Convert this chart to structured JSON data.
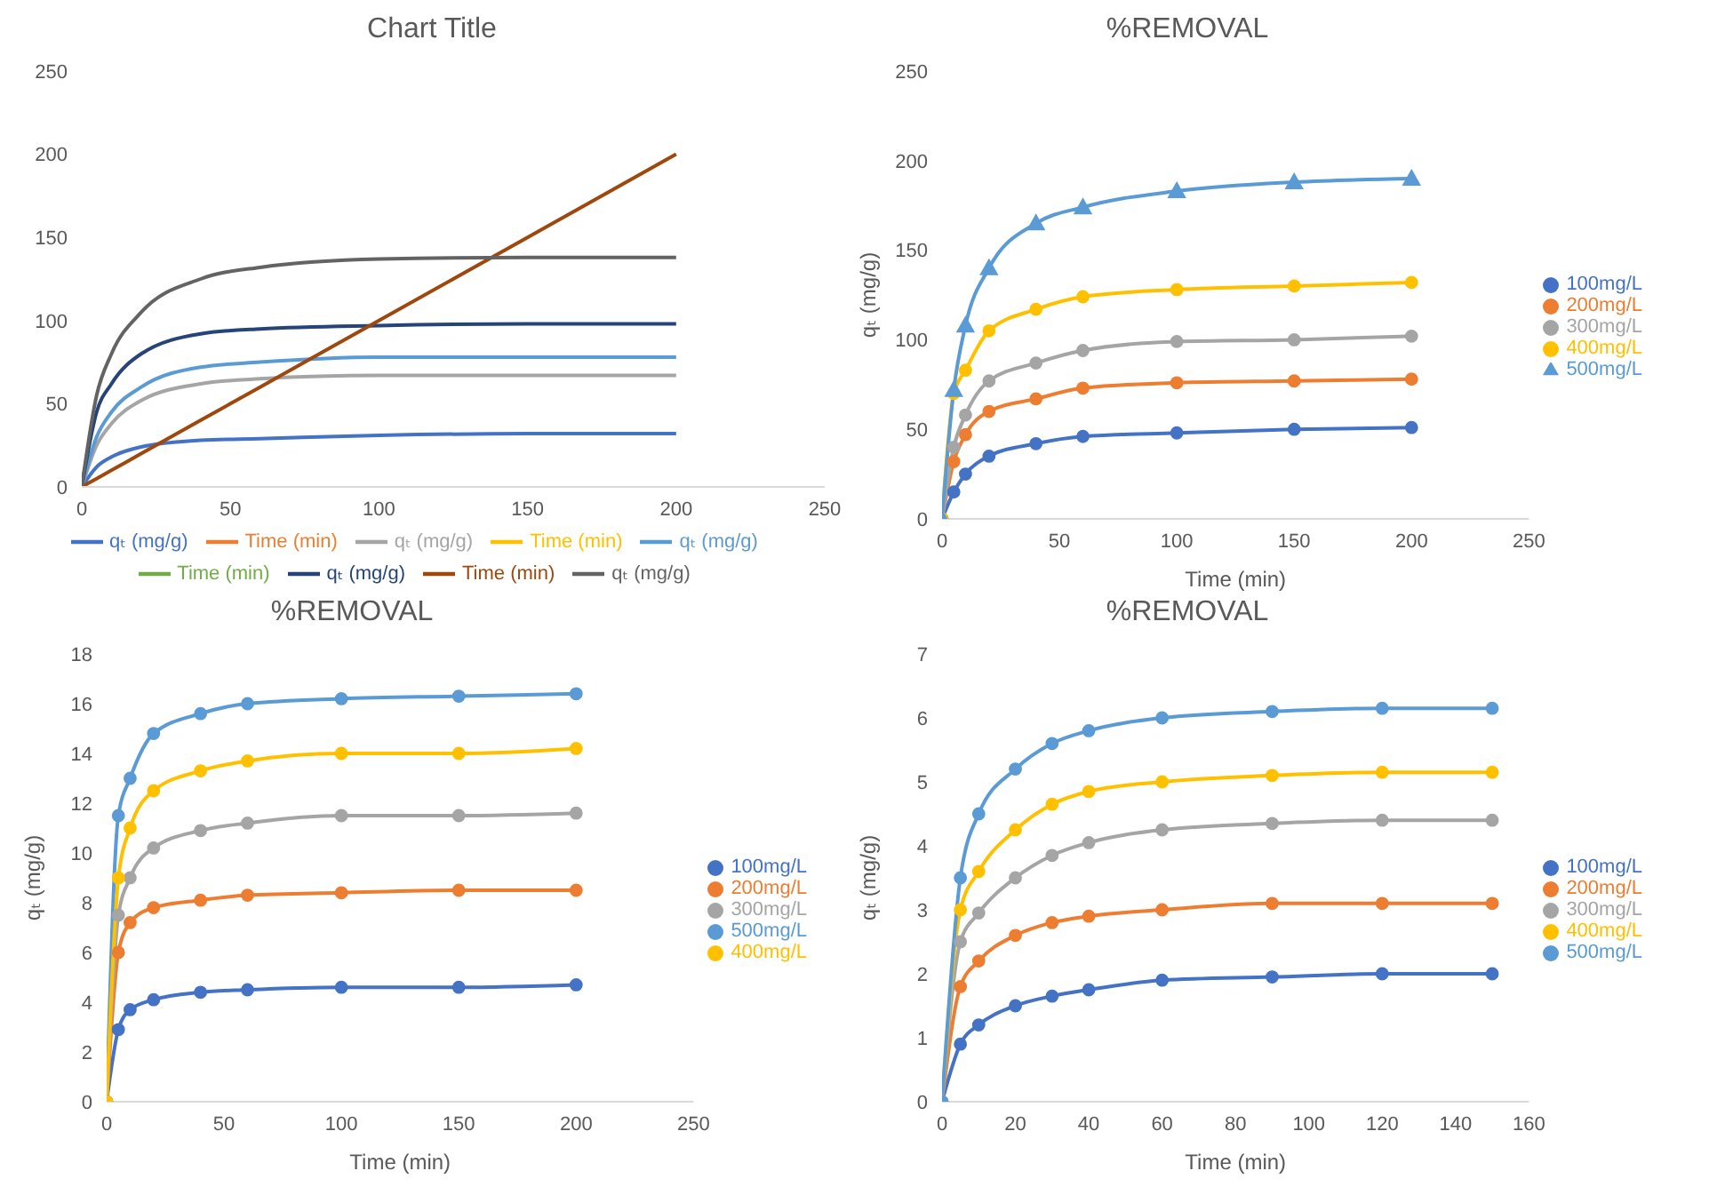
{
  "chart_data": [
    {
      "type": "line",
      "title": "Chart Title",
      "x": [
        0,
        5,
        10,
        20,
        40,
        60,
        100,
        150,
        200
      ],
      "xlim": [
        0,
        250
      ],
      "xticks": [
        0,
        50,
        100,
        150,
        200,
        250
      ],
      "ylim": [
        0,
        250
      ],
      "yticks": [
        0,
        50,
        100,
        150,
        200,
        250
      ],
      "legend": "bottom",
      "series": [
        {
          "name": "qₜ (mg/g)",
          "color": "#4472c4",
          "values": [
            0,
            12,
            18,
            24,
            28,
            29,
            31,
            32,
            32
          ]
        },
        {
          "name": "Time (min)",
          "color": "#ed7d31",
          "values": [
            null,
            null,
            null,
            null,
            null,
            null,
            null,
            null,
            null
          ]
        },
        {
          "name": "qₜ (mg/g)",
          "color": "#a5a5a5",
          "values": [
            0,
            25,
            38,
            52,
            62,
            65,
            67,
            67,
            67
          ]
        },
        {
          "name": "Time (min)",
          "color": "#ffc000",
          "values": [
            null,
            null,
            null,
            null,
            null,
            null,
            null,
            null,
            null
          ]
        },
        {
          "name": "qₜ (mg/g)",
          "color": "#5b9bd5",
          "values": [
            0,
            30,
            45,
            60,
            72,
            75,
            78,
            78,
            78
          ]
        },
        {
          "name": "Time (min)",
          "color": "#70ad47",
          "values": [
            null,
            null,
            null,
            null,
            null,
            null,
            null,
            null,
            null
          ]
        },
        {
          "name": "qₜ (mg/g)",
          "color": "#264478",
          "values": [
            0,
            45,
            62,
            80,
            92,
            95,
            97,
            98,
            98
          ]
        },
        {
          "name": "Time (min)",
          "color": "#9e480e",
          "values": [
            0,
            5,
            10,
            20,
            40,
            60,
            100,
            150,
            200
          ]
        },
        {
          "name": "qₜ (mg/g)",
          "color": "#636363",
          "values": [
            0,
            55,
            80,
            105,
            125,
            132,
            137,
            138,
            138
          ]
        }
      ]
    },
    {
      "type": "line",
      "title": "%REMOVAL",
      "xlabel": "Time (min)",
      "ylabel": "qₜ (mg/g)",
      "x": [
        0,
        5,
        10,
        20,
        40,
        60,
        100,
        150,
        200
      ],
      "xlim": [
        0,
        250
      ],
      "xticks": [
        0,
        50,
        100,
        150,
        200,
        250
      ],
      "ylim": [
        0,
        250
      ],
      "yticks": [
        0,
        50,
        100,
        150,
        200,
        250
      ],
      "legend": "right",
      "marker": "circle",
      "series": [
        {
          "name": "100mg/L",
          "color": "#4472c4",
          "values": [
            0,
            15,
            25,
            35,
            42,
            46,
            48,
            50,
            51
          ]
        },
        {
          "name": "200mg/L",
          "color": "#ed7d31",
          "values": [
            0,
            32,
            47,
            60,
            67,
            73,
            76,
            77,
            78
          ]
        },
        {
          "name": "300mg/L",
          "color": "#a5a5a5",
          "values": [
            0,
            40,
            58,
            77,
            87,
            94,
            99,
            100,
            102
          ]
        },
        {
          "name": "400mg/L",
          "color": "#ffc000",
          "values": [
            0,
            70,
            83,
            105,
            117,
            124,
            128,
            130,
            132
          ]
        },
        {
          "name": "500mg/L",
          "color": "#5b9bd5",
          "marker": "triangle",
          "values": [
            0,
            72,
            108,
            140,
            165,
            174,
            183,
            188,
            190
          ]
        }
      ]
    },
    {
      "type": "line",
      "title": "%REMOVAL",
      "xlabel": "Time (min)",
      "ylabel": "qₜ (mg/g)",
      "x": [
        0,
        5,
        10,
        20,
        40,
        60,
        100,
        150,
        200
      ],
      "xlim": [
        0,
        250
      ],
      "xticks": [
        0,
        50,
        100,
        150,
        200,
        250
      ],
      "ylim": [
        0,
        18
      ],
      "yticks": [
        0,
        2,
        4,
        6,
        8,
        10,
        12,
        14,
        16,
        18
      ],
      "legend": "right",
      "marker": "circle",
      "series": [
        {
          "name": "100mg/L",
          "color": "#4472c4",
          "values": [
            0,
            2.9,
            3.7,
            4.1,
            4.4,
            4.5,
            4.6,
            4.6,
            4.7
          ]
        },
        {
          "name": "200mg/L",
          "color": "#ed7d31",
          "values": [
            0,
            6,
            7.2,
            7.8,
            8.1,
            8.3,
            8.4,
            8.5,
            8.5
          ]
        },
        {
          "name": "300mg/L",
          "color": "#a5a5a5",
          "values": [
            0,
            7.5,
            9,
            10.2,
            10.9,
            11.2,
            11.5,
            11.5,
            11.6
          ]
        },
        {
          "name": "500mg/L",
          "color": "#5b9bd5",
          "values": [
            0,
            11.5,
            13,
            14.8,
            15.6,
            16,
            16.2,
            16.3,
            16.4
          ]
        },
        {
          "name": "400mg/L",
          "color": "#ffc000",
          "values": [
            0,
            9,
            11,
            12.5,
            13.3,
            13.7,
            14,
            14,
            14.2
          ]
        }
      ]
    },
    {
      "type": "line",
      "title": "%REMOVAL",
      "xlabel": "Time (min)",
      "ylabel": "qₜ (mg/g)",
      "x": [
        0,
        5,
        10,
        20,
        30,
        40,
        60,
        90,
        120,
        150
      ],
      "xlim": [
        0,
        160
      ],
      "xticks": [
        0,
        20,
        40,
        60,
        80,
        100,
        120,
        140,
        160
      ],
      "ylim": [
        0,
        7
      ],
      "yticks": [
        0,
        1,
        2,
        3,
        4,
        5,
        6,
        7
      ],
      "legend": "right",
      "marker": "circle",
      "series": [
        {
          "name": "100mg/L",
          "color": "#4472c4",
          "values": [
            0,
            0.9,
            1.2,
            1.5,
            1.65,
            1.75,
            1.9,
            1.95,
            2,
            2
          ]
        },
        {
          "name": "200mg/L",
          "color": "#ed7d31",
          "values": [
            0,
            1.8,
            2.2,
            2.6,
            2.8,
            2.9,
            3,
            3.1,
            3.1,
            3.1
          ]
        },
        {
          "name": "300mg/L",
          "color": "#a5a5a5",
          "values": [
            0,
            2.5,
            2.95,
            3.5,
            3.85,
            4.05,
            4.25,
            4.35,
            4.4,
            4.4
          ]
        },
        {
          "name": "400mg/L",
          "color": "#ffc000",
          "values": [
            0,
            3,
            3.6,
            4.25,
            4.65,
            4.85,
            5,
            5.1,
            5.15,
            5.15
          ]
        },
        {
          "name": "500mg/L",
          "color": "#5b9bd5",
          "values": [
            0,
            3.5,
            4.5,
            5.2,
            5.6,
            5.8,
            6,
            6.1,
            6.15,
            6.15
          ]
        }
      ]
    }
  ]
}
